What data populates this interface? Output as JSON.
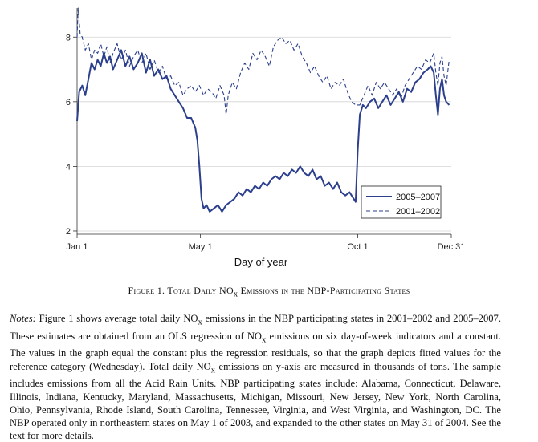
{
  "chart_data": {
    "type": "line",
    "xlabel": "Day of year",
    "x_ticks": [
      {
        "label": "Jan 1",
        "day": 1
      },
      {
        "label": "May 1",
        "day": 121
      },
      {
        "label": "Oct 1",
        "day": 274
      },
      {
        "label": "Dec 31",
        "day": 365
      }
    ],
    "y_ticks": [
      2,
      4,
      6,
      8
    ],
    "xlim": [
      1,
      365
    ],
    "ylim": [
      1.9,
      8.9
    ],
    "grid": "horizontal",
    "legend_position": "bottom-right",
    "series": [
      {
        "name": "2005–2007",
        "style": "solid",
        "color": "#2b3f8c",
        "points": [
          [
            1,
            5.4
          ],
          [
            3,
            6.3
          ],
          [
            6,
            6.5
          ],
          [
            9,
            6.2
          ],
          [
            12,
            6.7
          ],
          [
            15,
            7.2
          ],
          [
            18,
            7.0
          ],
          [
            21,
            7.3
          ],
          [
            24,
            7.1
          ],
          [
            27,
            7.5
          ],
          [
            30,
            7.2
          ],
          [
            33,
            7.4
          ],
          [
            36,
            7.0
          ],
          [
            40,
            7.3
          ],
          [
            44,
            7.6
          ],
          [
            48,
            7.1
          ],
          [
            52,
            7.4
          ],
          [
            56,
            7.0
          ],
          [
            60,
            7.2
          ],
          [
            64,
            7.5
          ],
          [
            68,
            6.9
          ],
          [
            72,
            7.3
          ],
          [
            76,
            6.8
          ],
          [
            80,
            7.0
          ],
          [
            84,
            6.7
          ],
          [
            88,
            6.8
          ],
          [
            92,
            6.4
          ],
          [
            96,
            6.2
          ],
          [
            100,
            6.0
          ],
          [
            104,
            5.8
          ],
          [
            108,
            5.5
          ],
          [
            112,
            5.5
          ],
          [
            116,
            5.2
          ],
          [
            118,
            4.8
          ],
          [
            120,
            4.0
          ],
          [
            122,
            3.0
          ],
          [
            124,
            2.7
          ],
          [
            127,
            2.8
          ],
          [
            130,
            2.6
          ],
          [
            134,
            2.7
          ],
          [
            138,
            2.8
          ],
          [
            142,
            2.6
          ],
          [
            146,
            2.8
          ],
          [
            150,
            2.9
          ],
          [
            154,
            3.0
          ],
          [
            158,
            3.2
          ],
          [
            162,
            3.1
          ],
          [
            166,
            3.3
          ],
          [
            170,
            3.2
          ],
          [
            174,
            3.4
          ],
          [
            178,
            3.3
          ],
          [
            182,
            3.5
          ],
          [
            186,
            3.4
          ],
          [
            190,
            3.6
          ],
          [
            194,
            3.7
          ],
          [
            198,
            3.6
          ],
          [
            202,
            3.8
          ],
          [
            206,
            3.7
          ],
          [
            210,
            3.9
          ],
          [
            214,
            3.8
          ],
          [
            218,
            4.0
          ],
          [
            222,
            3.8
          ],
          [
            226,
            3.7
          ],
          [
            230,
            3.9
          ],
          [
            234,
            3.6
          ],
          [
            238,
            3.7
          ],
          [
            242,
            3.4
          ],
          [
            246,
            3.5
          ],
          [
            250,
            3.3
          ],
          [
            254,
            3.5
          ],
          [
            258,
            3.2
          ],
          [
            262,
            3.1
          ],
          [
            266,
            3.2
          ],
          [
            270,
            3.0
          ],
          [
            272,
            2.9
          ],
          [
            274,
            4.5
          ],
          [
            276,
            5.6
          ],
          [
            279,
            5.9
          ],
          [
            282,
            5.8
          ],
          [
            286,
            6.0
          ],
          [
            290,
            6.1
          ],
          [
            294,
            5.8
          ],
          [
            298,
            6.0
          ],
          [
            302,
            6.2
          ],
          [
            306,
            5.9
          ],
          [
            310,
            6.1
          ],
          [
            314,
            6.3
          ],
          [
            318,
            6.0
          ],
          [
            322,
            6.4
          ],
          [
            326,
            6.3
          ],
          [
            330,
            6.6
          ],
          [
            334,
            6.7
          ],
          [
            338,
            6.9
          ],
          [
            342,
            7.0
          ],
          [
            345,
            7.1
          ],
          [
            348,
            6.9
          ],
          [
            350,
            6.2
          ],
          [
            352,
            5.6
          ],
          [
            354,
            6.4
          ],
          [
            356,
            6.7
          ],
          [
            358,
            6.2
          ],
          [
            360,
            6.0
          ],
          [
            363,
            5.9
          ]
        ]
      },
      {
        "name": "2001–2002",
        "style": "dashed",
        "color": "#2b3f8c",
        "points": [
          [
            1,
            8.0
          ],
          [
            2,
            8.9
          ],
          [
            4,
            8.1
          ],
          [
            6,
            8.0
          ],
          [
            9,
            7.6
          ],
          [
            12,
            7.8
          ],
          [
            15,
            7.3
          ],
          [
            18,
            7.6
          ],
          [
            21,
            7.5
          ],
          [
            24,
            7.8
          ],
          [
            27,
            7.4
          ],
          [
            30,
            7.7
          ],
          [
            33,
            7.2
          ],
          [
            36,
            7.5
          ],
          [
            40,
            7.8
          ],
          [
            44,
            7.3
          ],
          [
            48,
            7.6
          ],
          [
            52,
            7.1
          ],
          [
            56,
            7.4
          ],
          [
            60,
            7.6
          ],
          [
            64,
            7.2
          ],
          [
            68,
            7.5
          ],
          [
            72,
            7.0
          ],
          [
            76,
            7.3
          ],
          [
            80,
            6.9
          ],
          [
            84,
            7.1
          ],
          [
            88,
            6.7
          ],
          [
            92,
            6.8
          ],
          [
            96,
            6.5
          ],
          [
            100,
            6.6
          ],
          [
            104,
            6.2
          ],
          [
            108,
            6.4
          ],
          [
            112,
            6.5
          ],
          [
            116,
            6.3
          ],
          [
            120,
            6.5
          ],
          [
            124,
            6.2
          ],
          [
            128,
            6.4
          ],
          [
            132,
            6.3
          ],
          [
            136,
            6.1
          ],
          [
            140,
            6.5
          ],
          [
            144,
            6.2
          ],
          [
            146,
            5.6
          ],
          [
            148,
            6.2
          ],
          [
            152,
            6.6
          ],
          [
            156,
            6.4
          ],
          [
            160,
            6.9
          ],
          [
            164,
            7.2
          ],
          [
            168,
            7.0
          ],
          [
            172,
            7.5
          ],
          [
            176,
            7.3
          ],
          [
            180,
            7.6
          ],
          [
            184,
            7.4
          ],
          [
            188,
            7.1
          ],
          [
            192,
            7.7
          ],
          [
            196,
            7.9
          ],
          [
            200,
            8.0
          ],
          [
            204,
            7.8
          ],
          [
            208,
            7.9
          ],
          [
            212,
            7.6
          ],
          [
            216,
            7.8
          ],
          [
            220,
            7.4
          ],
          [
            224,
            7.2
          ],
          [
            228,
            6.9
          ],
          [
            232,
            7.1
          ],
          [
            236,
            6.8
          ],
          [
            240,
            6.6
          ],
          [
            244,
            6.8
          ],
          [
            248,
            6.4
          ],
          [
            252,
            6.6
          ],
          [
            256,
            6.5
          ],
          [
            260,
            6.7
          ],
          [
            264,
            6.3
          ],
          [
            268,
            6.0
          ],
          [
            272,
            5.9
          ],
          [
            276,
            5.9
          ],
          [
            280,
            6.2
          ],
          [
            284,
            6.5
          ],
          [
            288,
            6.2
          ],
          [
            292,
            6.6
          ],
          [
            296,
            6.4
          ],
          [
            300,
            6.6
          ],
          [
            304,
            6.4
          ],
          [
            308,
            6.2
          ],
          [
            312,
            6.4
          ],
          [
            316,
            6.1
          ],
          [
            320,
            6.5
          ],
          [
            324,
            6.7
          ],
          [
            328,
            6.9
          ],
          [
            332,
            7.1
          ],
          [
            336,
            7.0
          ],
          [
            340,
            7.3
          ],
          [
            344,
            7.2
          ],
          [
            348,
            7.5
          ],
          [
            350,
            6.9
          ],
          [
            352,
            6.5
          ],
          [
            354,
            7.2
          ],
          [
            356,
            7.4
          ],
          [
            358,
            6.8
          ],
          [
            360,
            6.5
          ],
          [
            363,
            7.3
          ]
        ]
      }
    ]
  },
  "caption": {
    "prefix": "Figure 1. Total Daily NO",
    "subscript": "x",
    "suffix": " Emissions in the NBP-Participating States"
  },
  "notes": {
    "label": "Notes:",
    "p1": " Figure 1 shows average total daily NO",
    "p2": " emissions in the NBP participating states in 2001–2002 and 2005–2007. These estimates are obtained from an OLS regression of NO",
    "p3": " emissions on six day-of-week indicators and a constant. The values in the graph equal the constant plus the regression residuals, so that the graph depicts fitted values for the reference category (Wednesday). Total daily NO",
    "p4": " emissions on y-axis are measured in thousands of tons. The sample includes emissions from all the Acid Rain Units. NBP participating states include: Alabama, Connecticut, Delaware, Illinois, Indiana, Kentucky, Maryland, Massachusetts, Michigan, Missouri, New Jersey, New York, North Carolina, Ohio, Pennsylvania, Rhode Island, South Carolina, Tennessee, Virginia, and West Virginia, and Washington, DC. The NBP operated only in northeastern states on May 1 of 2003, and expanded to the other states on May 31 of 2004. See the text for more details.",
    "sub": "x"
  }
}
